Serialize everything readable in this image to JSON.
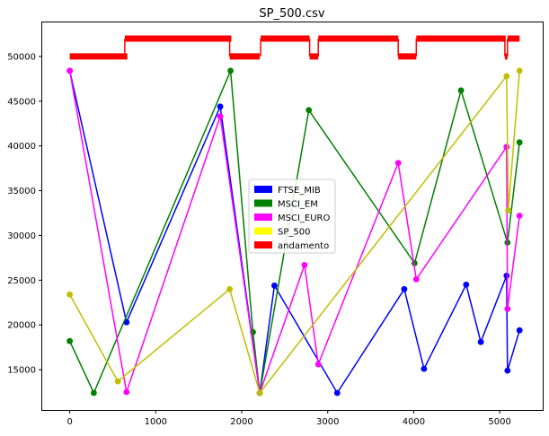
{
  "chart_data": {
    "type": "line",
    "title": "SP_500.csv",
    "xlabel": "",
    "ylabel": "",
    "xlim": [
      -320,
      5500
    ],
    "ylim": [
      10500,
      53800
    ],
    "x_ticks": [
      0,
      1000,
      2000,
      3000,
      4000,
      5000
    ],
    "y_ticks": [
      15000,
      20000,
      25000,
      30000,
      35000,
      40000,
      45000,
      50000
    ],
    "grid": false,
    "legend_position": "center",
    "series": [
      {
        "name": "FTSE_MIB",
        "color": "#0000ff",
        "points": [
          [
            0,
            48400
          ],
          [
            660,
            20300
          ],
          [
            1750,
            44400
          ],
          [
            2210,
            12400
          ],
          [
            2380,
            24400
          ],
          [
            3110,
            12400
          ],
          [
            3890,
            24000
          ],
          [
            4120,
            15100
          ],
          [
            4610,
            24500
          ],
          [
            4780,
            18100
          ],
          [
            5080,
            25500
          ],
          [
            5090,
            14900
          ],
          [
            5230,
            19400
          ]
        ]
      },
      {
        "name": "MSCI_EM",
        "color": "#008000",
        "points": [
          [
            0,
            18200
          ],
          [
            280,
            12400
          ],
          [
            1870,
            48400
          ],
          [
            2130,
            19200
          ],
          [
            2210,
            12400
          ],
          [
            2780,
            44000
          ],
          [
            4010,
            26900
          ],
          [
            4550,
            46200
          ],
          [
            5090,
            29200
          ],
          [
            5230,
            40400
          ]
        ]
      },
      {
        "name": "MSCI_EURO",
        "color": "#ff00ff",
        "points": [
          [
            0,
            48400
          ],
          [
            660,
            12500
          ],
          [
            1750,
            43300
          ],
          [
            2210,
            12400
          ],
          [
            2730,
            26700
          ],
          [
            2890,
            15600
          ],
          [
            3820,
            38100
          ],
          [
            4030,
            25100
          ],
          [
            5080,
            39900
          ],
          [
            5090,
            21800
          ],
          [
            5230,
            32200
          ]
        ]
      },
      {
        "name": "SP_500",
        "color": "#ffff00",
        "line_color": "#bfbf00",
        "points": [
          [
            0,
            23400
          ],
          [
            560,
            13700
          ],
          [
            1860,
            24000
          ],
          [
            2210,
            12400
          ],
          [
            5080,
            47800
          ],
          [
            5100,
            32800
          ],
          [
            5230,
            48400
          ]
        ]
      },
      {
        "name": "andamento",
        "color": "#ff0000",
        "segments": [
          [
            0,
            670,
            50000
          ],
          [
            640,
            1880,
            52000
          ],
          [
            1860,
            2210,
            50000
          ],
          [
            2220,
            2790,
            52000
          ],
          [
            2790,
            2890,
            50000
          ],
          [
            2890,
            3820,
            52000
          ],
          [
            3820,
            4030,
            50000
          ],
          [
            4030,
            5070,
            52000
          ],
          [
            5060,
            5090,
            50000
          ],
          [
            5090,
            5230,
            52000
          ]
        ]
      }
    ]
  }
}
